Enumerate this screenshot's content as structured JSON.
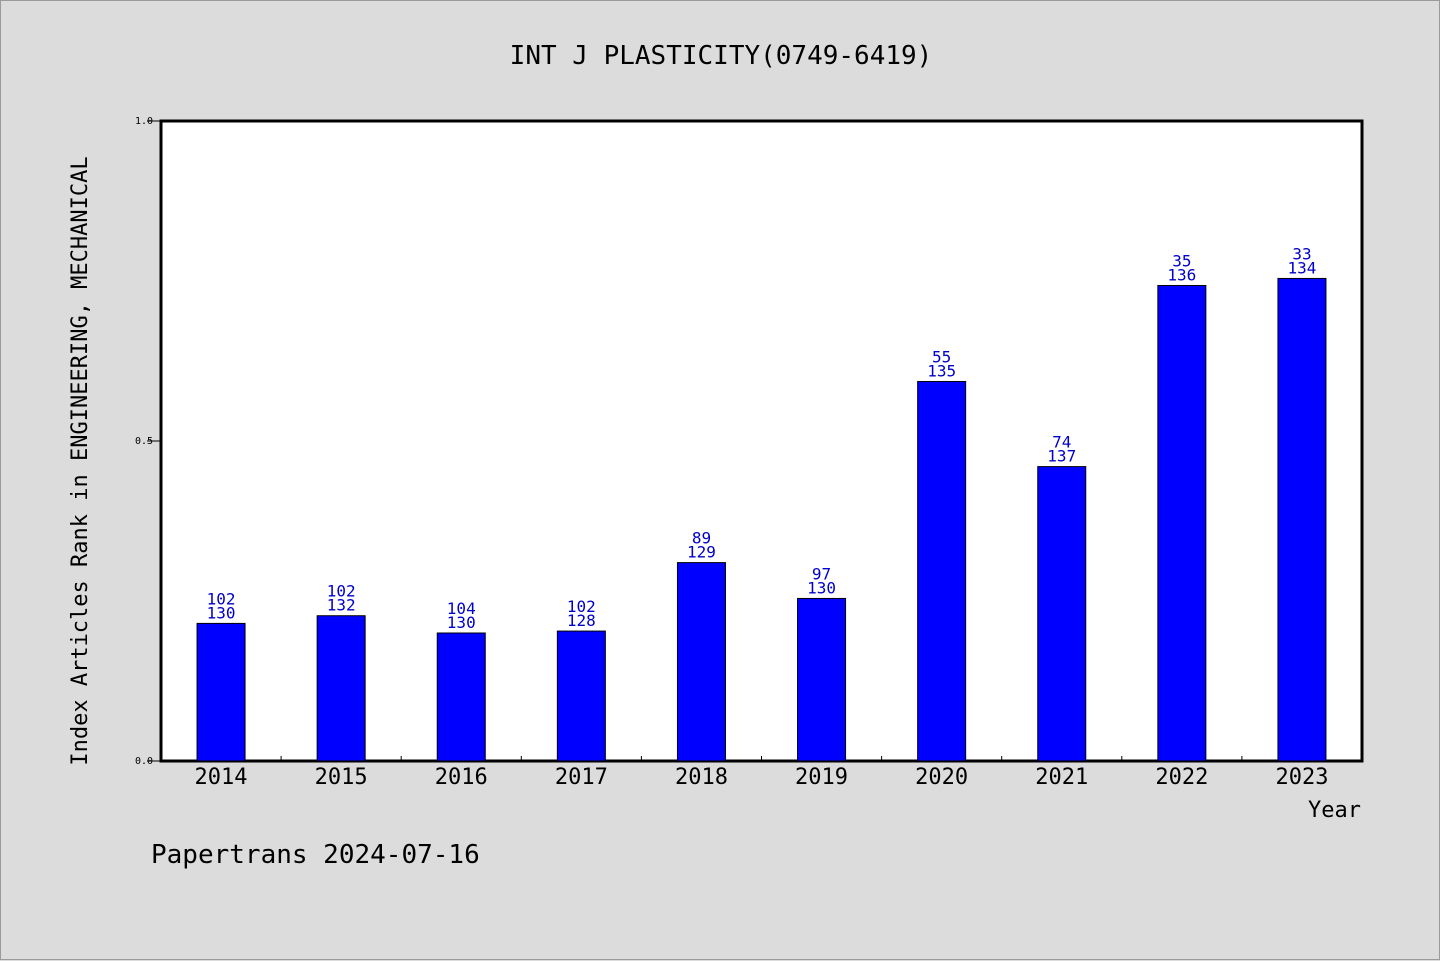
{
  "chart_data": {
    "type": "bar",
    "title": "INT J PLASTICITY(0749-6419)",
    "xlabel": "Year",
    "ylabel": "Index Articles Rank in ENGINEERING, MECHANICAL",
    "ylim": [
      0,
      1
    ],
    "yticks": [
      "0.0",
      "0.5",
      "1.0"
    ],
    "grid": false,
    "categories": [
      "2014",
      "2015",
      "2016",
      "2017",
      "2018",
      "2019",
      "2020",
      "2021",
      "2022",
      "2023"
    ],
    "values": [
      0.215,
      0.227,
      0.2,
      0.203,
      0.31,
      0.254,
      0.593,
      0.46,
      0.743,
      0.754
    ],
    "rank": [
      "102",
      "102",
      "104",
      "102",
      "89",
      "97",
      "55",
      "74",
      "35",
      "33"
    ],
    "total": [
      "130",
      "132",
      "130",
      "128",
      "129",
      "130",
      "135",
      "137",
      "136",
      "134"
    ],
    "bar_color": "#0000ff",
    "label_color": "#0000cc"
  },
  "footer": "Papertrans 2024-07-16"
}
